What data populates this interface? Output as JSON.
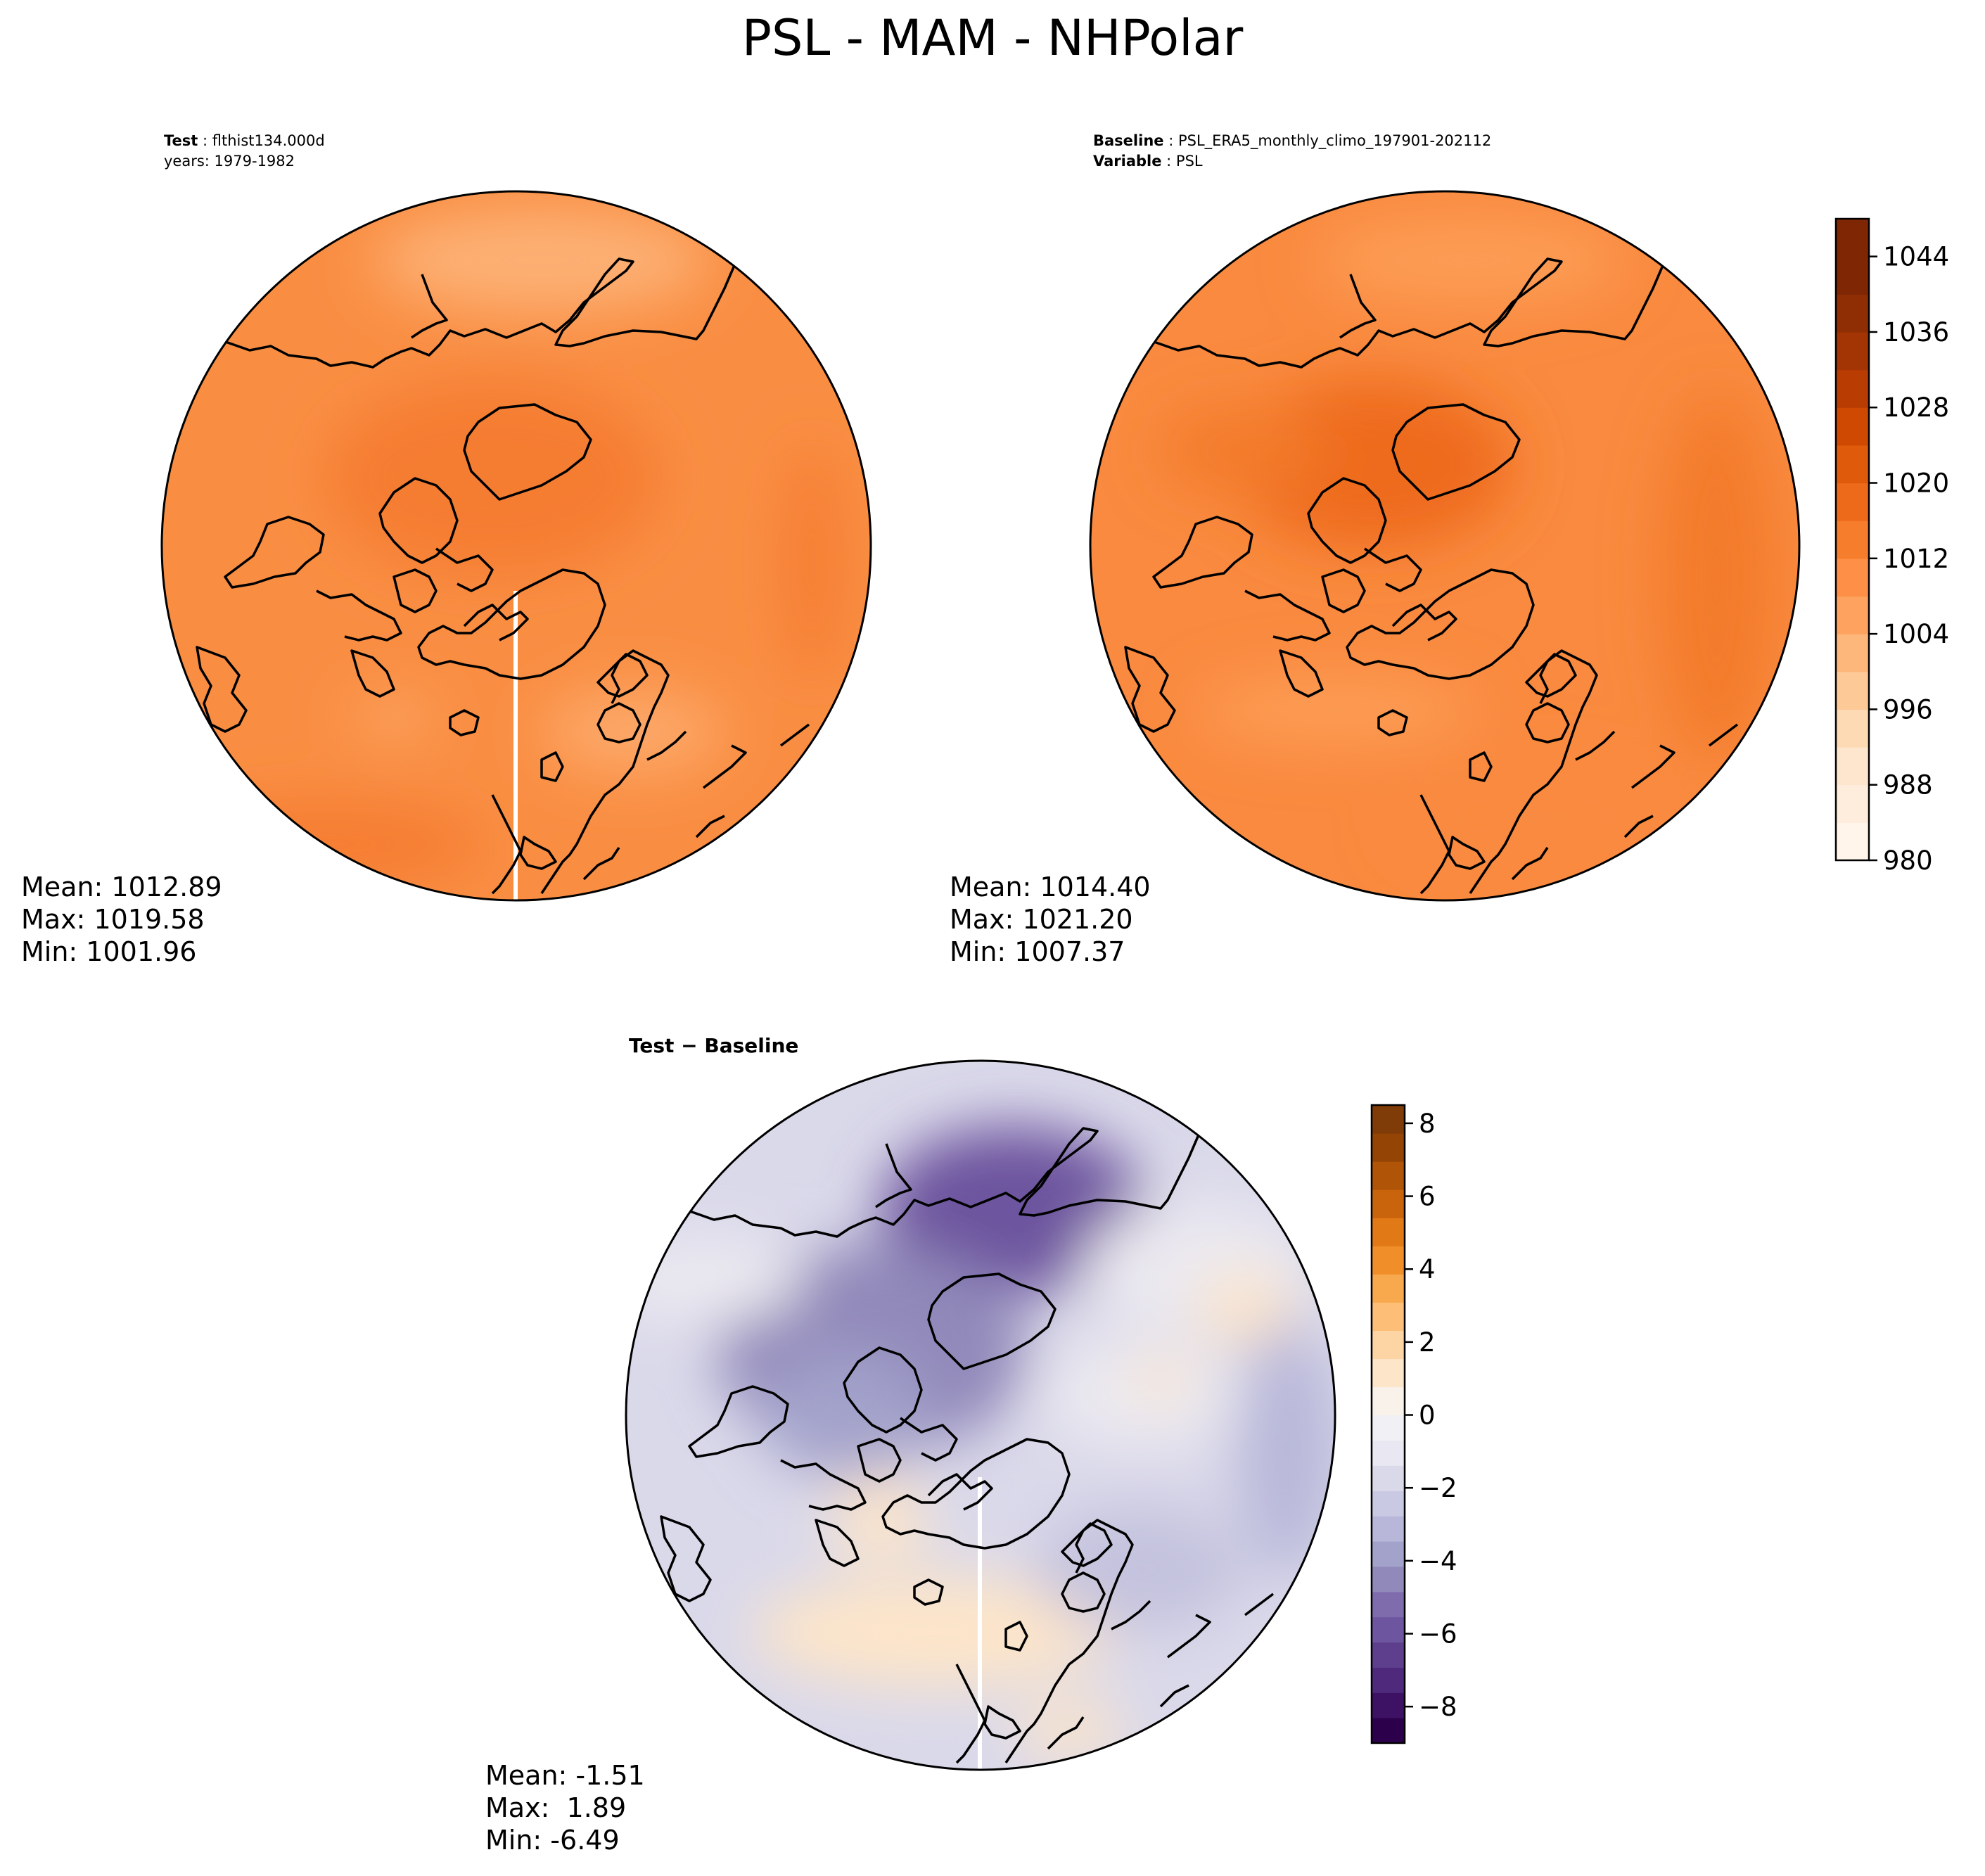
{
  "figure": {
    "title": "PSL - MAM - NHPolar"
  },
  "chart_data": [
    {
      "type": "heatmap",
      "projection": "north-polar-stereographic",
      "panel": "test",
      "header_bold": "Test",
      "header_value": "flthist134.000d",
      "header_line2": "years: 1979-1982",
      "stats": {
        "mean": "Mean: 1012.89",
        "max": "Max: 1019.58",
        "min": "Min: 1001.96"
      },
      "colorscale": "Oranges",
      "base_color": "#f98e43"
    },
    {
      "type": "heatmap",
      "projection": "north-polar-stereographic",
      "panel": "baseline",
      "header_bold": "Baseline",
      "header_value": "PSL_ERA5_monthly_climo_197901-202112",
      "header2_bold": "Variable",
      "header2_value": "PSL",
      "stats": {
        "mean": "Mean: 1014.40",
        "max": "Max: 1021.20",
        "min": "Min: 1007.37"
      },
      "colorscale": "Oranges",
      "base_color": "#f98a3f"
    },
    {
      "type": "heatmap",
      "projection": "north-polar-stereographic",
      "panel": "difference",
      "header_bold": "Test − Baseline",
      "stats": {
        "mean": "Mean: -1.51",
        "max": "Max:  1.89",
        "min": "Min: -6.49"
      },
      "colorscale": "PuOr_r",
      "base_color": "#dad9ea"
    }
  ],
  "colorbars": {
    "main": {
      "vmin": 980,
      "vmax": 1048,
      "step": 4,
      "ticks": [
        980,
        988,
        996,
        1004,
        1012,
        1020,
        1028,
        1036,
        1044
      ],
      "tick_labels": [
        "980",
        "988",
        "996",
        "1004",
        "1012",
        "1020",
        "1028",
        "1036",
        "1044"
      ],
      "colors": [
        "#fff5eb",
        "#feeddc",
        "#fee6ce",
        "#fdd9b4",
        "#fdc997",
        "#fdb77a",
        "#fda25f",
        "#fd8f47",
        "#f67d2b",
        "#ed6a1a",
        "#e05a0b",
        "#cf4902",
        "#b93d02",
        "#a33403",
        "#8f2d04",
        "#7f2704",
        "#7f2704"
      ]
    },
    "diff": {
      "vmin": -9,
      "vmax": 8.5,
      "ticks": [
        -8,
        -6,
        -4,
        -2,
        0,
        2,
        4,
        6,
        8
      ],
      "tick_labels": [
        "−8",
        "−6",
        "−4",
        "−2",
        "0",
        "2",
        "4",
        "6",
        "8"
      ],
      "colors_neg": [
        "#2d004b",
        "#3d1163",
        "#4f2a7c",
        "#5e3f8d",
        "#6d559f",
        "#7f6cac",
        "#9189ba",
        "#a3a2cb",
        "#b8b7d9",
        "#cac9e3",
        "#dad9ea",
        "#e8e7f2",
        "#f1f0f5"
      ],
      "colors_pos": [
        "#f8f2ea",
        "#fde5c9",
        "#fdd4a3",
        "#fdbf78",
        "#f9a94d",
        "#f08f2a",
        "#e07916",
        "#c9640c",
        "#b05408",
        "#944506",
        "#7f3b08"
      ]
    }
  }
}
